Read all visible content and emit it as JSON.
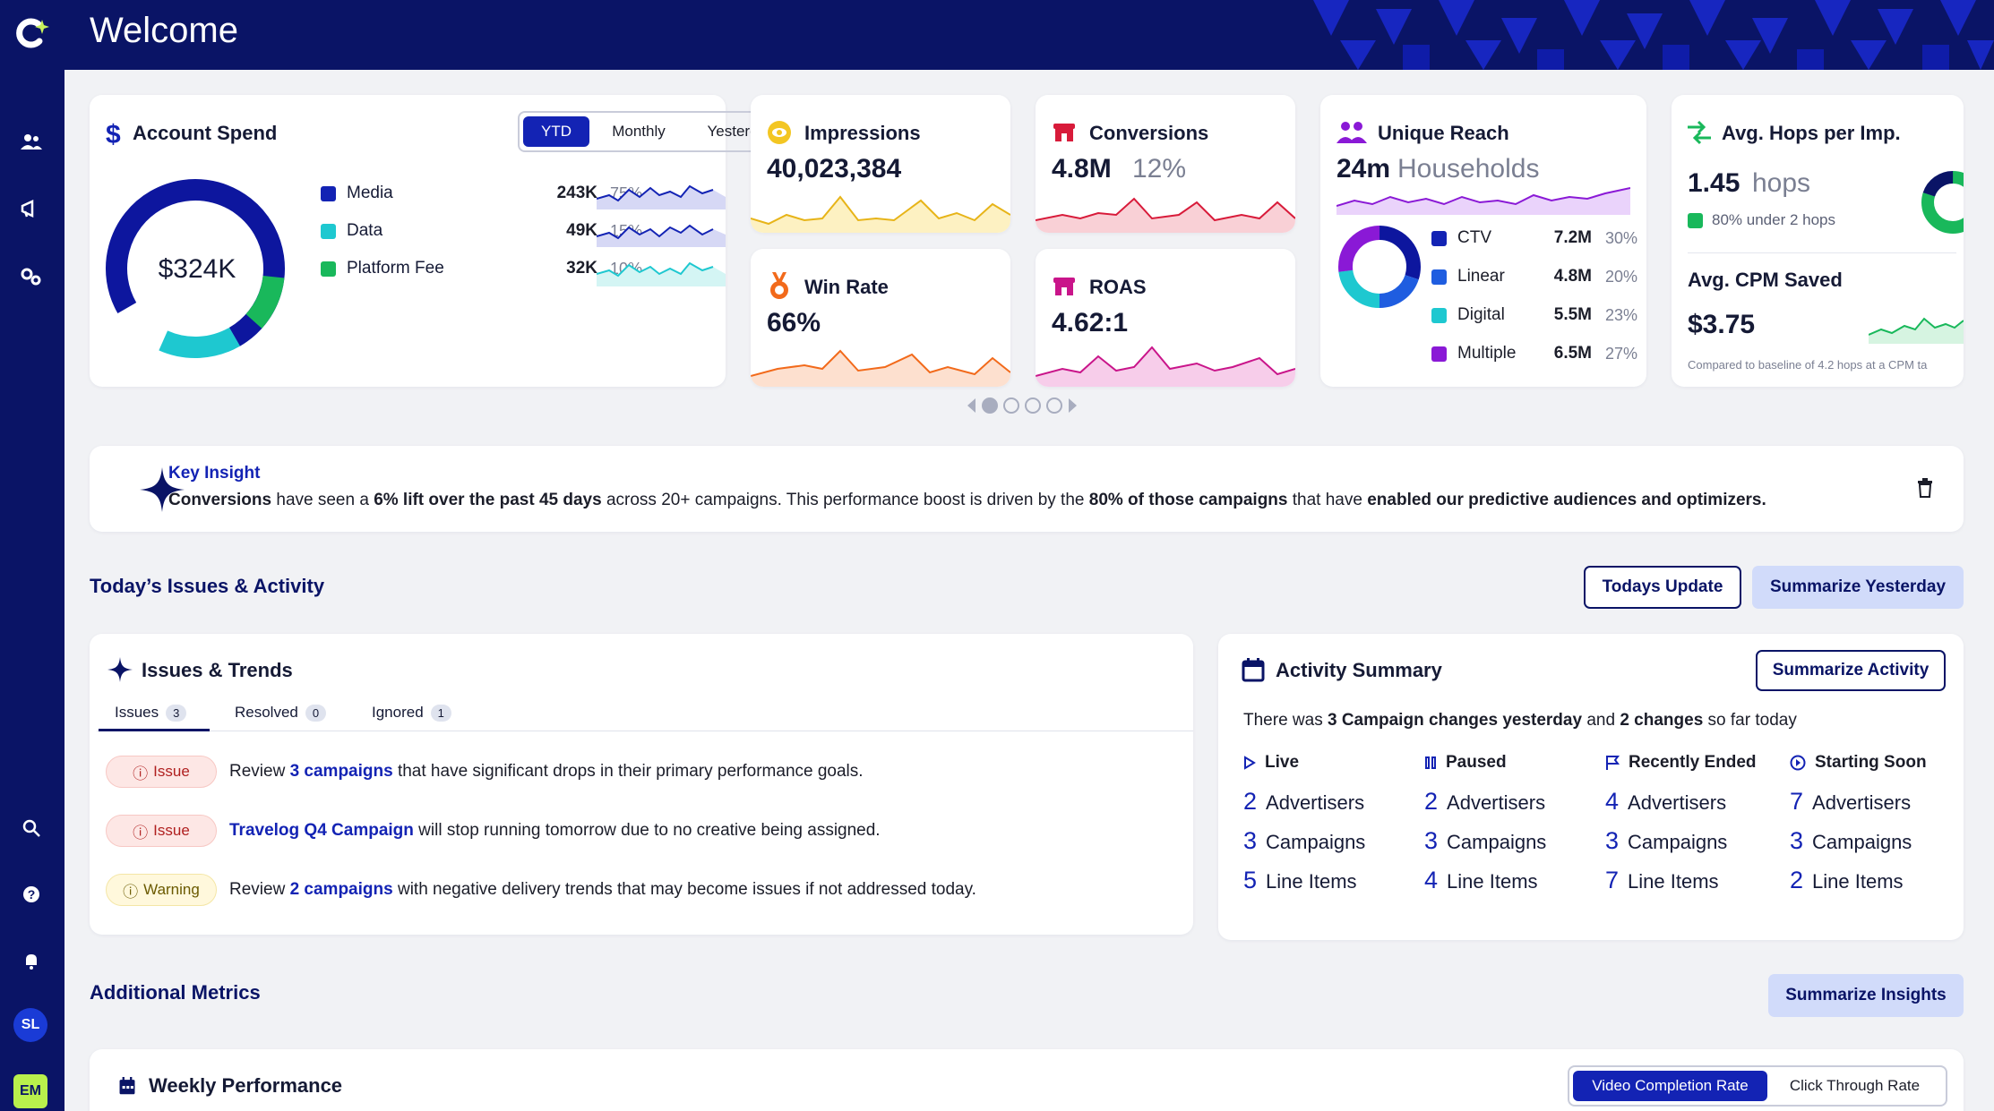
{
  "header": {
    "title": "Welcome"
  },
  "sidebar": {
    "icons": [
      "users-icon",
      "megaphone-icon",
      "settings-icon",
      "search-icon",
      "help-icon",
      "bell-icon"
    ],
    "avatar_sl": "SL",
    "avatar_em": "EM"
  },
  "account_spend": {
    "title": "Account Spend",
    "total": "$324K",
    "tabs": [
      "YTD",
      "Monthly",
      "Yesterday"
    ],
    "active_tab": "YTD",
    "rows": [
      {
        "label": "Media",
        "value": "243K",
        "pct": "75%",
        "color": "#1323b4"
      },
      {
        "label": "Data",
        "value": "49K",
        "pct": "15%",
        "color": "#1ec8d0"
      },
      {
        "label": "Platform Fee",
        "value": "32K",
        "pct": "10%",
        "color": "#19b85b"
      }
    ]
  },
  "impressions": {
    "title": "Impressions",
    "value": "40,023,384"
  },
  "conversions": {
    "title": "Conversions",
    "value": "4.8M",
    "pct": "12%"
  },
  "win_rate": {
    "title": "Win Rate",
    "value": "66%"
  },
  "roas": {
    "title": "ROAS",
    "value": "4.62:1"
  },
  "unique_reach": {
    "title": "Unique Reach",
    "value": "24m",
    "unit": "Households",
    "rows": [
      {
        "label": "CTV",
        "value": "7.2M",
        "pct": "30%",
        "color": "#1323b4"
      },
      {
        "label": "Linear",
        "value": "4.8M",
        "pct": "20%",
        "color": "#1f5de0"
      },
      {
        "label": "Digital",
        "value": "5.5M",
        "pct": "23%",
        "color": "#1ec8d0"
      },
      {
        "label": "Multiple",
        "value": "6.5M",
        "pct": "27%",
        "color": "#8a19d6"
      }
    ]
  },
  "hops": {
    "title": "Avg. Hops per Imp.",
    "value": "1.45",
    "unit": "hops",
    "sub": "80% under 2 hops",
    "cpm_title": "Avg. CPM Saved",
    "cpm_value": "$3.75",
    "footnote": "Compared to baseline of 4.2 hops at a CPM ta"
  },
  "insight": {
    "title": "Key Insight",
    "parts": [
      {
        "t": "Conversions",
        "b": true
      },
      {
        "t": " have seen a ",
        "b": false
      },
      {
        "t": "6% lift over the past 45 days",
        "b": true
      },
      {
        "t": " across 20+ campaigns. This performance boost is driven by the ",
        "b": false
      },
      {
        "t": "80% of those campaigns",
        "b": true
      },
      {
        "t": " that have ",
        "b": false
      },
      {
        "t": "enabled our predictive audiences and optimizers.",
        "b": true
      }
    ]
  },
  "issues_section": {
    "title": "Today’s Issues & Activity",
    "btn_today": "Todays Update",
    "btn_yesterday": "Summarize Yesterday"
  },
  "issues_card": {
    "title": "Issues & Trends",
    "tabs": [
      {
        "label": "Issues",
        "count": "3"
      },
      {
        "label": "Resolved",
        "count": "0"
      },
      {
        "label": "Ignored",
        "count": "1"
      }
    ],
    "rows": [
      {
        "type": "Issue",
        "pre": "Review ",
        "link": "3 campaigns",
        "post": " that have significant drops in their primary performance goals."
      },
      {
        "type": "Issue",
        "pre": "",
        "link": "Travelog Q4 Campaign",
        "post": " will stop running tomorrow due to no creative being assigned."
      },
      {
        "type": "Warning",
        "pre": "Review ",
        "link": "2 campaigns",
        "post": " with negative delivery trends that may become issues if not addressed today."
      }
    ]
  },
  "activity": {
    "title": "Activity Summary",
    "button": "Summarize Activity",
    "summary_pre": "There was ",
    "summary_b1": "3 Campaign changes yesterday",
    "summary_mid": " and ",
    "summary_b2": "2 changes",
    "summary_post": " so far today",
    "columns": [
      {
        "head": "Live",
        "icon": "play-icon",
        "advertisers": "2",
        "campaigns": "3",
        "line_items": "5"
      },
      {
        "head": "Paused",
        "icon": "pause-icon",
        "advertisers": "2",
        "campaigns": "3",
        "line_items": "4"
      },
      {
        "head": "Recently Ended",
        "icon": "flag-icon",
        "advertisers": "4",
        "campaigns": "3",
        "line_items": "7"
      },
      {
        "head": "Starting Soon",
        "icon": "play-circle-icon",
        "advertisers": "7",
        "campaigns": "3",
        "line_items": "2"
      }
    ],
    "labels": {
      "advertisers": "Advertisers",
      "campaigns": "Campaigns",
      "line_items": "Line Items"
    }
  },
  "additional": {
    "title": "Additional Metrics",
    "button": "Summarize Insights"
  },
  "weekly": {
    "title": "Weekly Performance",
    "tabs": [
      "Video Completion Rate",
      "Click Through Rate"
    ]
  }
}
